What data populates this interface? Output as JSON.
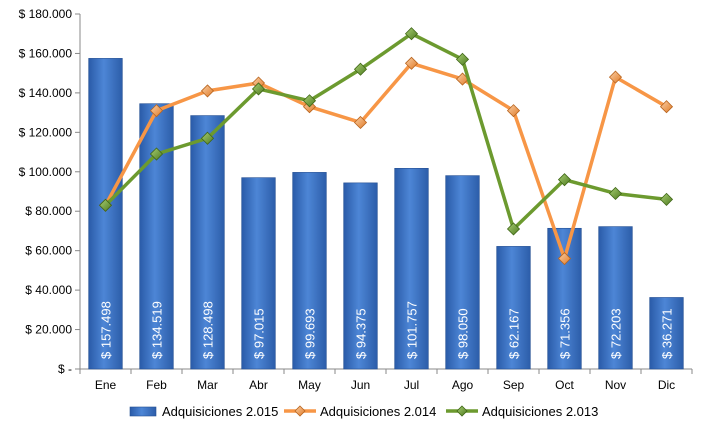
{
  "chart_data": {
    "type": "bar",
    "categories": [
      "Ene",
      "Feb",
      "Mar",
      "Abr",
      "May",
      "Jun",
      "Jul",
      "Ago",
      "Sep",
      "Oct",
      "Nov",
      "Dic"
    ],
    "ylim": [
      0,
      180000
    ],
    "ytick_labels": [
      "$ -",
      "$ 20.000",
      "$ 40.000",
      "$ 60.000",
      "$ 80.000",
      "$ 100.000",
      "$ 120.000",
      "$ 140.000",
      "$ 160.000",
      "$ 180.000"
    ],
    "ytick_values": [
      0,
      20000,
      40000,
      60000,
      80000,
      100000,
      120000,
      140000,
      160000,
      180000
    ],
    "grid": false,
    "legend_position": "bottom",
    "series": [
      {
        "name": "Adquisiciones 2.015",
        "type": "bar",
        "color": "#3B72C4",
        "values": [
          157498,
          134519,
          128498,
          97015,
          99693,
          94375,
          101757,
          98050,
          62167,
          71356,
          72203,
          36271
        ],
        "labels": [
          "$ 157.498",
          "$ 134.519",
          "$ 128.498",
          "$ 97.015",
          "$ 99.693",
          "$ 94.375",
          "$ 101.757",
          "$ 98.050",
          "$ 62.167",
          "$ 71.356",
          "$ 72.203",
          "$ 36.271"
        ]
      },
      {
        "name": "Adquisiciones 2.014",
        "type": "line",
        "color": "#F79646",
        "values": [
          83000,
          131000,
          141000,
          145000,
          133000,
          125000,
          155000,
          147000,
          131000,
          56000,
          148000,
          133000
        ]
      },
      {
        "name": "Adquisiciones 2.013",
        "type": "line",
        "color": "#6C9A2F",
        "values": [
          83000,
          109000,
          117000,
          142000,
          136000,
          152000,
          170000,
          157000,
          71000,
          96000,
          89000,
          86000
        ]
      }
    ]
  }
}
